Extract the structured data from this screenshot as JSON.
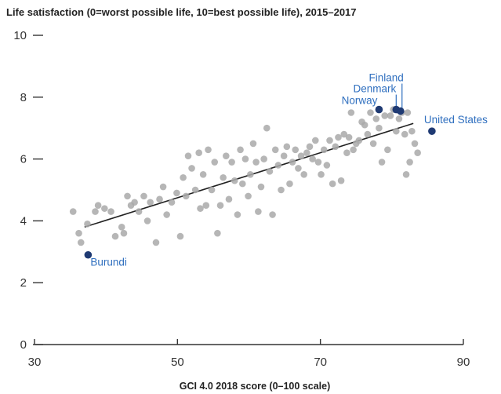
{
  "chart_data": {
    "type": "scatter",
    "title": "Life satisfaction (0=worst possible life, 10=best possible life), 2015–2017",
    "xlabel": "GCI 4.0 2018 score (0–100 scale)",
    "ylabel": "",
    "xlim": [
      30,
      90
    ],
    "ylim": [
      0,
      10
    ],
    "xticks": [
      30,
      50,
      70,
      90
    ],
    "yticks": [
      0,
      2,
      4,
      6,
      8,
      10
    ],
    "grid": false,
    "legend": "none",
    "colors": {
      "points": "#a9a9a9",
      "highlight": "#1f3a73",
      "annotation": "#2f6fbf",
      "trend": "#222222",
      "axis": "#333333"
    },
    "trendline": {
      "x": [
        37,
        83
      ],
      "y": [
        3.8,
        7.15
      ]
    },
    "points": [
      [
        35.4,
        4.3
      ],
      [
        36.2,
        3.6
      ],
      [
        36.5,
        3.3
      ],
      [
        37.4,
        3.9
      ],
      [
        38.5,
        4.3
      ],
      [
        38.9,
        4.5
      ],
      [
        39.8,
        4.4
      ],
      [
        40.7,
        4.3
      ],
      [
        41.3,
        3.5
      ],
      [
        42.2,
        3.8
      ],
      [
        42.5,
        3.6
      ],
      [
        43.0,
        4.8
      ],
      [
        43.5,
        4.5
      ],
      [
        44.0,
        4.6
      ],
      [
        44.6,
        4.3
      ],
      [
        45.3,
        4.8
      ],
      [
        45.8,
        4.0
      ],
      [
        46.2,
        4.6
      ],
      [
        47.0,
        3.3
      ],
      [
        47.5,
        4.7
      ],
      [
        48.0,
        5.1
      ],
      [
        48.5,
        4.2
      ],
      [
        49.2,
        4.6
      ],
      [
        49.9,
        4.9
      ],
      [
        50.4,
        3.5
      ],
      [
        50.8,
        5.4
      ],
      [
        51.2,
        4.8
      ],
      [
        51.5,
        6.1
      ],
      [
        52.0,
        5.7
      ],
      [
        52.5,
        5.0
      ],
      [
        53.0,
        6.2
      ],
      [
        53.2,
        4.4
      ],
      [
        53.6,
        5.5
      ],
      [
        54.0,
        4.5
      ],
      [
        54.3,
        6.3
      ],
      [
        54.8,
        5.0
      ],
      [
        55.2,
        5.9
      ],
      [
        55.6,
        3.6
      ],
      [
        56.0,
        4.5
      ],
      [
        56.4,
        5.4
      ],
      [
        56.8,
        6.1
      ],
      [
        57.2,
        4.7
      ],
      [
        57.6,
        5.9
      ],
      [
        58.0,
        5.3
      ],
      [
        58.4,
        4.2
      ],
      [
        58.8,
        6.3
      ],
      [
        59.1,
        5.2
      ],
      [
        59.5,
        6.0
      ],
      [
        59.9,
        4.8
      ],
      [
        60.2,
        5.5
      ],
      [
        60.6,
        6.5
      ],
      [
        61.0,
        5.9
      ],
      [
        61.3,
        4.3
      ],
      [
        61.7,
        5.1
      ],
      [
        62.1,
        6.0
      ],
      [
        62.5,
        7.0
      ],
      [
        62.9,
        5.6
      ],
      [
        63.3,
        4.2
      ],
      [
        63.7,
        6.3
      ],
      [
        64.1,
        5.8
      ],
      [
        64.5,
        5.0
      ],
      [
        64.9,
        6.1
      ],
      [
        65.3,
        6.4
      ],
      [
        65.7,
        5.2
      ],
      [
        66.1,
        5.9
      ],
      [
        66.5,
        6.3
      ],
      [
        66.9,
        5.7
      ],
      [
        67.3,
        6.1
      ],
      [
        67.7,
        5.5
      ],
      [
        68.1,
        6.2
      ],
      [
        68.5,
        6.4
      ],
      [
        68.9,
        6.0
      ],
      [
        69.3,
        6.6
      ],
      [
        69.7,
        5.9
      ],
      [
        70.1,
        5.5
      ],
      [
        70.5,
        6.3
      ],
      [
        70.9,
        5.8
      ],
      [
        71.3,
        6.6
      ],
      [
        71.7,
        5.2
      ],
      [
        72.1,
        6.4
      ],
      [
        72.5,
        6.7
      ],
      [
        72.9,
        5.3
      ],
      [
        73.3,
        6.8
      ],
      [
        73.7,
        6.2
      ],
      [
        74.0,
        6.7
      ],
      [
        74.3,
        7.5
      ],
      [
        74.6,
        6.3
      ],
      [
        75.0,
        6.5
      ],
      [
        75.4,
        6.6
      ],
      [
        75.8,
        7.2
      ],
      [
        76.2,
        7.1
      ],
      [
        76.6,
        6.8
      ],
      [
        77.0,
        7.5
      ],
      [
        77.4,
        6.5
      ],
      [
        77.8,
        7.3
      ],
      [
        78.2,
        7.0
      ],
      [
        78.6,
        5.9
      ],
      [
        79.0,
        7.4
      ],
      [
        79.4,
        6.3
      ],
      [
        79.8,
        7.4
      ],
      [
        80.2,
        7.6
      ],
      [
        80.6,
        6.9
      ],
      [
        81.0,
        7.3
      ],
      [
        81.4,
        7.5
      ],
      [
        81.8,
        6.8
      ],
      [
        82.0,
        5.5
      ],
      [
        82.2,
        7.5
      ],
      [
        82.5,
        5.9
      ],
      [
        82.8,
        6.9
      ],
      [
        83.2,
        6.5
      ],
      [
        83.6,
        6.2
      ]
    ],
    "highlighted": [
      {
        "label": "Burundi",
        "x": 37.5,
        "y": 2.9
      },
      {
        "label": "Norway",
        "x": 78.2,
        "y": 7.6
      },
      {
        "label": "Denmark",
        "x": 80.6,
        "y": 7.6
      },
      {
        "label": "Finland",
        "x": 81.2,
        "y": 7.55
      },
      {
        "label": "United States",
        "x": 85.6,
        "y": 6.9
      }
    ]
  }
}
